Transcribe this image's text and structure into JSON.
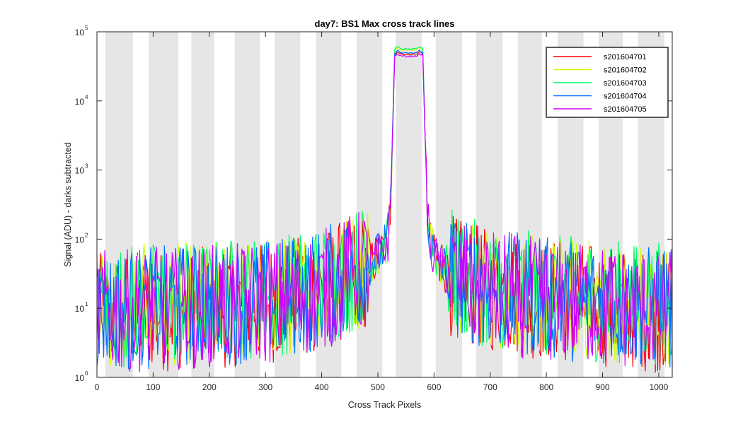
{
  "chart_data": {
    "type": "line",
    "title": "day7: BS1  Max cross track lines",
    "xlabel": "Cross Track Pixels",
    "ylabel": "Signal (ADU) - darks subtracted",
    "xlim": [
      0,
      1024
    ],
    "ylim": [
      1,
      100000
    ],
    "yscale": "log",
    "x_ticks": [
      0,
      100,
      200,
      300,
      400,
      500,
      600,
      700,
      800,
      900,
      1000
    ],
    "y_ticks": [
      {
        "base": "10",
        "exp": "0",
        "value": 1
      },
      {
        "base": "10",
        "exp": "1",
        "value": 10
      },
      {
        "base": "10",
        "exp": "2",
        "value": 100
      },
      {
        "base": "10",
        "exp": "3",
        "value": 1000
      },
      {
        "base": "10",
        "exp": "4",
        "value": 10000
      },
      {
        "base": "10",
        "exp": "5",
        "value": 100000
      }
    ],
    "grid": false,
    "legend_position": "top-right",
    "background_bands": [
      [
        15,
        64
      ],
      [
        92,
        145
      ],
      [
        168,
        209
      ],
      [
        245,
        290
      ],
      [
        316,
        362
      ],
      [
        390,
        435
      ],
      [
        462,
        508
      ],
      [
        532,
        578
      ],
      [
        603,
        650
      ],
      [
        675,
        722
      ],
      [
        749,
        792
      ],
      [
        820,
        866
      ],
      [
        893,
        936
      ],
      [
        963,
        1010
      ]
    ],
    "band_color": "#e6e6e6",
    "peak_region": [
      525,
      585
    ],
    "x": [
      0,
      50,
      100,
      150,
      200,
      250,
      300,
      350,
      400,
      450,
      480,
      500,
      510,
      518,
      522,
      526,
      530,
      535,
      540,
      550,
      560,
      570,
      575,
      580,
      584,
      588,
      592,
      600,
      620,
      650,
      700,
      750,
      800,
      850,
      900,
      950,
      1000,
      1024
    ],
    "series": [
      {
        "name": "s201604701",
        "color": "#ff0000",
        "values": [
          8,
          9,
          9,
          10,
          10,
          11,
          12,
          14,
          18,
          28,
          40,
          55,
          70,
          100,
          250,
          3000,
          45000,
          52000,
          48000,
          47000,
          47000,
          48000,
          52000,
          48000,
          3000,
          250,
          100,
          55,
          35,
          24,
          18,
          15,
          13,
          12,
          11,
          10,
          9,
          9
        ]
      },
      {
        "name": "s201604702",
        "color": "#ccff00",
        "values": [
          10,
          11,
          11,
          12,
          12,
          13,
          14,
          16,
          21,
          32,
          45,
          62,
          78,
          110,
          280,
          3400,
          55000,
          60000,
          56000,
          55000,
          55000,
          56000,
          60000,
          56000,
          3400,
          280,
          110,
          62,
          40,
          27,
          20,
          17,
          15,
          14,
          13,
          12,
          11,
          11
        ]
      },
      {
        "name": "s201604703",
        "color": "#00ff66",
        "values": [
          11,
          11,
          12,
          12,
          13,
          14,
          15,
          17,
          22,
          33,
          46,
          64,
          80,
          112,
          290,
          3500,
          57000,
          61000,
          57000,
          56000,
          56000,
          57000,
          61000,
          57000,
          3500,
          290,
          112,
          64,
          41,
          28,
          21,
          18,
          16,
          14,
          13,
          12,
          12,
          11
        ]
      },
      {
        "name": "s201604704",
        "color": "#0072ff",
        "values": [
          9,
          10,
          10,
          11,
          11,
          12,
          13,
          15,
          19,
          30,
          42,
          58,
          73,
          104,
          260,
          3200,
          49000,
          54000,
          50000,
          49000,
          49000,
          50000,
          54000,
          50000,
          3200,
          260,
          104,
          58,
          37,
          25,
          19,
          16,
          14,
          13,
          12,
          11,
          10,
          10
        ]
      },
      {
        "name": "s201604705",
        "color": "#cc00ff",
        "values": [
          9,
          9,
          10,
          10,
          11,
          11,
          12,
          14,
          18,
          28,
          40,
          54,
          68,
          98,
          240,
          3000,
          44000,
          48000,
          45000,
          44000,
          44000,
          45000,
          48000,
          45000,
          3000,
          240,
          98,
          54,
          34,
          23,
          18,
          15,
          13,
          12,
          11,
          10,
          9,
          9
        ]
      }
    ]
  }
}
